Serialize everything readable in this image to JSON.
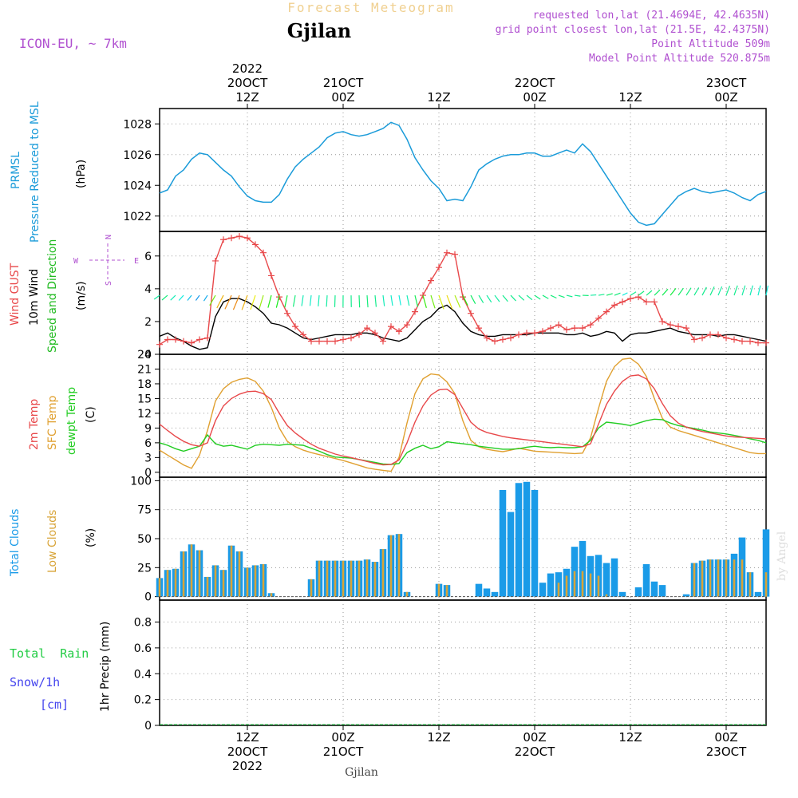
{
  "header": {
    "main_title": "Forecast Meteogram",
    "location": "Gjilan",
    "model": "ICON-EU, ~ 7km",
    "requested": "requested lon,lat (21.4694E, 42.4635N)",
    "grid_point": "grid point closest lon,lat (21.5E, 42.4375N)",
    "point_altitude": "Point Altitude 509m",
    "model_altitude": "Model Point Altitude 520.875m",
    "footer_location": "Gjilan",
    "credit": "by Angel"
  },
  "colors": {
    "pressure": "#1a9bd9",
    "gust": "#e8484a",
    "wind": "#000000",
    "direction": "#22bb22",
    "temp": "#e8484a",
    "sfc": "#e0a030",
    "dewpt": "#22cc22",
    "total_clouds": "#1a9be8",
    "low_clouds": "#d8a438",
    "rain": "#22cc44",
    "snow": "#4444ee",
    "title": "#f0d090",
    "purple": "#b050d0"
  },
  "time_axis": {
    "top": [
      {
        "t": 12,
        "lines": [
          "2022",
          "20OCT",
          "12Z"
        ]
      },
      {
        "t": 24,
        "lines": [
          "21OCT",
          "00Z"
        ]
      },
      {
        "t": 36,
        "lines": [
          "12Z"
        ]
      },
      {
        "t": 48,
        "lines": [
          "22OCT",
          "00Z"
        ]
      },
      {
        "t": 60,
        "lines": [
          "12Z"
        ]
      },
      {
        "t": 72,
        "lines": [
          "23OCT",
          "00Z"
        ]
      }
    ],
    "bottom": [
      {
        "t": 12,
        "lines": [
          "12Z",
          "20OCT",
          "2022"
        ]
      },
      {
        "t": 24,
        "lines": [
          "00Z",
          "21OCT"
        ]
      },
      {
        "t": 36,
        "lines": [
          "12Z"
        ]
      },
      {
        "t": 48,
        "lines": [
          "00Z",
          "22OCT"
        ]
      },
      {
        "t": 60,
        "lines": [
          "12Z"
        ]
      },
      {
        "t": 72,
        "lines": [
          "00Z",
          "23OCT"
        ]
      }
    ]
  },
  "panels": {
    "pressure": {
      "labels": [
        "PRMSL",
        "Pressure Reduced to MSL"
      ],
      "unit": "(hPa)",
      "ticks": [
        1022,
        1024,
        1026,
        1028
      ],
      "ylim": [
        1021,
        1029
      ]
    },
    "wind": {
      "gust_label": "Wind GUST",
      "wind_label": "10m Wind",
      "dir_label": "Speed and Direction",
      "unit": "(m/s)",
      "ticks": [
        0,
        2,
        4,
        6
      ],
      "ylim": [
        0,
        7.5
      ],
      "compass": {
        "n": "N",
        "s": "S",
        "w": "W",
        "e": "E"
      }
    },
    "temp": {
      "temp_label": "2m Temp",
      "sfc_label": "SFC Temp",
      "dewpt_label": "dewpt Temp",
      "unit": "(C)",
      "ticks": [
        0,
        3,
        6,
        9,
        12,
        15,
        18,
        21,
        24
      ],
      "ylim": [
        -1,
        24
      ]
    },
    "clouds": {
      "total_label": "Total Clouds",
      "low_label": "Low Clouds",
      "unit": "(%)",
      "ticks": [
        0,
        25,
        50,
        75,
        100
      ],
      "ylim": [
        -3,
        103
      ]
    },
    "precip": {
      "rain_label": "Total  Rain",
      "snow_label1": "Snow/1h",
      "snow_label2": "[cm]",
      "unit": "1hr Precip (mm)",
      "ticks": [
        0,
        0.2,
        0.4,
        0.6,
        0.8
      ],
      "tick_labels": [
        "0",
        "0.2",
        "0.4",
        "0.6",
        "0.8"
      ],
      "ylim": [
        0,
        0.97
      ]
    }
  },
  "chart_data": {
    "type": "line",
    "x_units": "hours since 20OCT 00Z",
    "xlim": [
      1,
      77
    ],
    "pressure_hPa": {
      "x": [
        1,
        2,
        3,
        4,
        5,
        6,
        7,
        8,
        9,
        10,
        11,
        12,
        13,
        14,
        15,
        16,
        17,
        18,
        19,
        20,
        21,
        22,
        23,
        24,
        25,
        26,
        27,
        28,
        29,
        30,
        31,
        32,
        33,
        34,
        35,
        36,
        37,
        38,
        39,
        40,
        41,
        42,
        43,
        44,
        45,
        46,
        47,
        48,
        49,
        50,
        51,
        52,
        53,
        54,
        55,
        56,
        57,
        58,
        59,
        60,
        61,
        62,
        63,
        64,
        65,
        66,
        67,
        68,
        69,
        70,
        71,
        72,
        73,
        74,
        75,
        76,
        77
      ],
      "y": [
        1023.5,
        1023.7,
        1024.6,
        1025.0,
        1025.7,
        1026.1,
        1026.0,
        1025.5,
        1025.0,
        1024.6,
        1023.9,
        1023.3,
        1023.0,
        1022.9,
        1022.9,
        1023.4,
        1024.4,
        1025.2,
        1025.7,
        1026.1,
        1026.5,
        1027.1,
        1027.4,
        1027.5,
        1027.3,
        1027.2,
        1027.3,
        1027.5,
        1027.7,
        1028.1,
        1027.9,
        1027.0,
        1025.8,
        1025.0,
        1024.3,
        1023.8,
        1023.0,
        1023.1,
        1023.0,
        1023.9,
        1025.0,
        1025.4,
        1025.7,
        1025.9,
        1026.0,
        1026.0,
        1026.1,
        1026.1,
        1025.9,
        1025.9,
        1026.1,
        1026.3,
        1026.1,
        1026.7,
        1026.2,
        1025.4,
        1024.6,
        1023.8,
        1023.0,
        1022.2,
        1021.6,
        1021.4,
        1021.5,
        1022.1,
        1022.7,
        1023.3,
        1023.6,
        1023.8,
        1023.6,
        1023.5,
        1023.6,
        1023.7,
        1023.5,
        1023.2,
        1023.0,
        1023.4,
        1023.6
      ]
    },
    "gust_ms": {
      "x": [
        1,
        2,
        3,
        4,
        5,
        6,
        7,
        8,
        9,
        10,
        11,
        12,
        13,
        14,
        15,
        16,
        17,
        18,
        19,
        20,
        21,
        22,
        23,
        24,
        25,
        26,
        27,
        28,
        29,
        30,
        31,
        32,
        33,
        34,
        35,
        36,
        37,
        38,
        39,
        40,
        41,
        42,
        43,
        44,
        45,
        46,
        47,
        48,
        49,
        50,
        51,
        52,
        53,
        54,
        55,
        56,
        57,
        58,
        59,
        60,
        61,
        62,
        63,
        64,
        65,
        66,
        67,
        68,
        69,
        70,
        71,
        72,
        73,
        74,
        75,
        76,
        77
      ],
      "y": [
        0.6,
        0.9,
        0.9,
        0.8,
        0.7,
        0.9,
        1.0,
        5.7,
        7.0,
        7.1,
        7.2,
        7.1,
        6.7,
        6.2,
        4.8,
        3.5,
        2.5,
        1.7,
        1.2,
        0.8,
        0.8,
        0.8,
        0.8,
        0.9,
        1.0,
        1.2,
        1.6,
        1.3,
        0.8,
        1.7,
        1.4,
        1.8,
        2.6,
        3.6,
        4.5,
        5.3,
        6.2,
        6.1,
        3.5,
        2.5,
        1.6,
        1.0,
        0.8,
        0.9,
        1.0,
        1.2,
        1.3,
        1.3,
        1.4,
        1.6,
        1.8,
        1.5,
        1.6,
        1.6,
        1.8,
        2.2,
        2.6,
        3.0,
        3.2,
        3.4,
        3.5,
        3.2,
        3.2,
        2.0,
        1.8,
        1.7,
        1.6,
        0.9,
        1.0,
        1.2,
        1.2,
        1.0,
        0.9,
        0.8,
        0.8,
        0.7,
        0.7
      ]
    },
    "wind_ms": {
      "x": [
        1,
        2,
        3,
        4,
        5,
        6,
        7,
        8,
        9,
        10,
        11,
        12,
        13,
        14,
        15,
        16,
        17,
        18,
        19,
        20,
        21,
        22,
        23,
        24,
        25,
        26,
        27,
        28,
        29,
        30,
        31,
        32,
        33,
        34,
        35,
        36,
        37,
        38,
        39,
        40,
        41,
        42,
        43,
        44,
        45,
        46,
        47,
        48,
        49,
        50,
        51,
        52,
        53,
        54,
        55,
        56,
        57,
        58,
        59,
        60,
        61,
        62,
        63,
        64,
        65,
        66,
        67,
        68,
        69,
        70,
        71,
        72,
        73,
        74,
        75,
        76,
        77
      ],
      "y": [
        1.1,
        1.3,
        1.0,
        0.8,
        0.5,
        0.3,
        0.4,
        2.3,
        3.2,
        3.4,
        3.4,
        3.2,
        2.9,
        2.5,
        1.9,
        1.8,
        1.6,
        1.3,
        1.0,
        0.9,
        1.0,
        1.1,
        1.2,
        1.2,
        1.2,
        1.3,
        1.3,
        1.2,
        1.0,
        0.9,
        0.8,
        1.0,
        1.5,
        2.0,
        2.3,
        2.8,
        3.0,
        2.6,
        1.9,
        1.4,
        1.2,
        1.1,
        1.1,
        1.2,
        1.2,
        1.2,
        1.2,
        1.3,
        1.3,
        1.3,
        1.3,
        1.2,
        1.2,
        1.3,
        1.1,
        1.2,
        1.4,
        1.3,
        0.8,
        1.2,
        1.3,
        1.3,
        1.4,
        1.5,
        1.6,
        1.4,
        1.3,
        1.2,
        1.2,
        1.2,
        1.1,
        1.2,
        1.2,
        1.1,
        1.0,
        0.9,
        0.8
      ]
    },
    "temp_C": {
      "x": [
        1,
        2,
        3,
        4,
        5,
        6,
        7,
        8,
        9,
        10,
        11,
        12,
        13,
        14,
        15,
        16,
        17,
        18,
        19,
        20,
        21,
        22,
        23,
        24,
        25,
        26,
        27,
        28,
        29,
        30,
        31,
        32,
        33,
        34,
        35,
        36,
        37,
        38,
        39,
        40,
        41,
        42,
        43,
        44,
        45,
        46,
        47,
        48,
        49,
        50,
        51,
        52,
        53,
        54,
        55,
        56,
        57,
        58,
        59,
        60,
        61,
        62,
        63,
        64,
        65,
        66,
        67,
        68,
        69,
        70,
        71,
        72,
        73,
        74,
        75,
        76,
        77
      ],
      "y": [
        9.8,
        8.5,
        7.3,
        6.3,
        5.6,
        5.3,
        6.0,
        10.5,
        13.5,
        15.0,
        15.9,
        16.4,
        16.5,
        16.0,
        14.8,
        12.0,
        9.5,
        8.0,
        6.8,
        5.7,
        4.9,
        4.3,
        3.7,
        3.3,
        3.0,
        2.6,
        2.2,
        1.8,
        1.5,
        1.6,
        2.5,
        6.0,
        10.2,
        13.5,
        15.7,
        16.8,
        16.9,
        15.8,
        13.0,
        10.2,
        8.8,
        8.1,
        7.7,
        7.3,
        7.0,
        6.8,
        6.6,
        6.4,
        6.2,
        6.0,
        5.8,
        5.6,
        5.4,
        5.2,
        5.8,
        9.8,
        13.8,
        16.5,
        18.5,
        19.6,
        19.8,
        19.0,
        17.0,
        14.0,
        11.5,
        10.0,
        9.2,
        8.7,
        8.3,
        8.0,
        7.7,
        7.4,
        7.2,
        7.1,
        7.0,
        6.9,
        6.8
      ]
    },
    "sfc_temp_C": {
      "x": [
        1,
        2,
        3,
        4,
        5,
        6,
        7,
        8,
        9,
        10,
        11,
        12,
        13,
        14,
        15,
        16,
        17,
        18,
        19,
        20,
        21,
        22,
        23,
        24,
        25,
        26,
        27,
        28,
        29,
        30,
        31,
        32,
        33,
        34,
        35,
        36,
        37,
        38,
        39,
        40,
        41,
        42,
        43,
        44,
        45,
        46,
        47,
        48,
        49,
        50,
        51,
        52,
        53,
        54,
        55,
        56,
        57,
        58,
        59,
        60,
        61,
        62,
        63,
        64,
        65,
        66,
        67,
        68,
        69,
        70,
        71,
        72,
        73,
        74,
        75,
        76,
        77
      ],
      "y": [
        4.5,
        3.5,
        2.5,
        1.5,
        0.8,
        3.5,
        8.5,
        14.5,
        17.0,
        18.3,
        18.9,
        19.2,
        18.5,
        16.5,
        13.2,
        9.0,
        6.3,
        5.2,
        4.5,
        4.0,
        3.6,
        3.2,
        2.8,
        2.4,
        1.9,
        1.4,
        0.9,
        0.6,
        0.4,
        0.2,
        3.0,
        10.0,
        16.0,
        19.0,
        20.0,
        19.8,
        18.4,
        16.0,
        10.5,
        6.5,
        5.2,
        4.7,
        4.4,
        4.2,
        4.5,
        4.9,
        4.6,
        4.3,
        4.2,
        4.1,
        4.0,
        3.9,
        3.8,
        3.9,
        7.0,
        13.0,
        18.5,
        21.5,
        23.0,
        23.2,
        22.0,
        19.5,
        15.0,
        11.0,
        9.2,
        8.5,
        8.0,
        7.5,
        7.0,
        6.5,
        6.0,
        5.5,
        5.0,
        4.5,
        4.0,
        3.8,
        3.8
      ]
    },
    "dewpt_C": {
      "x": [
        1,
        2,
        3,
        4,
        5,
        6,
        7,
        8,
        9,
        10,
        11,
        12,
        13,
        14,
        15,
        16,
        17,
        18,
        19,
        20,
        21,
        22,
        23,
        24,
        25,
        26,
        27,
        28,
        29,
        30,
        31,
        32,
        33,
        34,
        35,
        36,
        37,
        38,
        39,
        40,
        41,
        42,
        43,
        44,
        45,
        46,
        47,
        48,
        49,
        50,
        51,
        52,
        53,
        54,
        55,
        56,
        57,
        58,
        59,
        60,
        61,
        62,
        63,
        64,
        65,
        66,
        67,
        68,
        69,
        70,
        71,
        72,
        73,
        74,
        75,
        76,
        77
      ],
      "y": [
        6.0,
        5.5,
        4.8,
        4.3,
        4.8,
        5.3,
        7.6,
        5.8,
        5.3,
        5.5,
        5.1,
        4.7,
        5.5,
        5.7,
        5.6,
        5.5,
        5.7,
        5.6,
        5.5,
        4.9,
        4.3,
        3.6,
        3.1,
        3.0,
        2.9,
        2.6,
        2.3,
        2.0,
        1.7,
        1.6,
        1.8,
        4.0,
        4.9,
        5.5,
        4.8,
        5.2,
        6.2,
        6.0,
        5.8,
        5.6,
        5.3,
        5.1,
        4.9,
        4.7,
        4.7,
        4.8,
        5.1,
        5.3,
        5.1,
        5.0,
        5.1,
        5.0,
        5.0,
        5.2,
        6.5,
        9.0,
        10.2,
        10.0,
        9.8,
        9.5,
        10.0,
        10.5,
        10.8,
        10.7,
        10.0,
        9.5,
        9.2,
        8.9,
        8.6,
        8.2,
        8.0,
        7.8,
        7.5,
        7.2,
        6.8,
        6.5,
        6.0
      ]
    },
    "total_clouds_pct": {
      "x": [
        1,
        2,
        3,
        4,
        5,
        6,
        7,
        8,
        9,
        10,
        11,
        12,
        13,
        14,
        15,
        16,
        17,
        18,
        19,
        20,
        21,
        22,
        23,
        24,
        25,
        26,
        27,
        28,
        29,
        30,
        31,
        32,
        33,
        34,
        35,
        36,
        37,
        38,
        39,
        40,
        41,
        42,
        43,
        44,
        45,
        46,
        47,
        48,
        49,
        50,
        51,
        52,
        53,
        54,
        55,
        56,
        57,
        58,
        59,
        60,
        61,
        62,
        63,
        64,
        65,
        66,
        67,
        68,
        69,
        70,
        71,
        72,
        73,
        74,
        75,
        76,
        77
      ],
      "y": [
        16,
        23,
        24,
        39,
        45,
        40,
        17,
        27,
        23,
        44,
        39,
        25,
        27,
        28,
        3,
        0,
        0,
        0,
        0,
        15,
        31,
        31,
        31,
        31,
        31,
        31,
        32,
        30,
        41,
        53,
        54,
        4,
        0,
        0,
        0,
        11,
        10,
        0,
        0,
        0,
        11,
        7,
        4,
        92,
        73,
        98,
        99,
        92,
        12,
        20,
        21,
        24,
        43,
        48,
        35,
        36,
        29,
        33,
        4,
        0,
        8,
        28,
        13,
        10,
        0,
        0,
        2,
        29,
        31,
        32,
        32,
        32,
        37,
        51,
        21,
        4,
        58
      ]
    },
    "low_clouds_pct": {
      "x": [
        1,
        2,
        3,
        4,
        5,
        6,
        7,
        8,
        9,
        10,
        11,
        12,
        13,
        14,
        15,
        16,
        17,
        18,
        19,
        20,
        21,
        22,
        23,
        24,
        25,
        26,
        27,
        28,
        29,
        30,
        31,
        32,
        33,
        34,
        35,
        36,
        37,
        38,
        39,
        40,
        41,
        42,
        43,
        44,
        45,
        46,
        47,
        48,
        49,
        50,
        51,
        52,
        53,
        54,
        55,
        56,
        57,
        58,
        59,
        60,
        61,
        62,
        63,
        64,
        65,
        66,
        67,
        68,
        69,
        70,
        71,
        72,
        73,
        74,
        75,
        76,
        77
      ],
      "y": [
        16,
        23,
        24,
        39,
        45,
        40,
        17,
        27,
        23,
        44,
        39,
        25,
        27,
        28,
        3,
        0,
        0,
        0,
        0,
        15,
        31,
        31,
        31,
        31,
        31,
        31,
        32,
        30,
        41,
        53,
        54,
        4,
        0,
        0,
        0,
        11,
        10,
        0,
        0,
        0,
        0,
        0,
        0,
        0,
        0,
        0,
        0,
        0,
        0,
        0,
        12,
        18,
        22,
        22,
        20,
        18,
        2,
        0,
        0,
        0,
        0,
        0,
        0,
        0,
        0,
        0,
        0,
        29,
        31,
        32,
        32,
        32,
        32,
        32,
        21,
        0,
        21
      ]
    },
    "precip_mm": {
      "x": [
        1,
        77
      ],
      "y": [
        0,
        0
      ]
    }
  }
}
